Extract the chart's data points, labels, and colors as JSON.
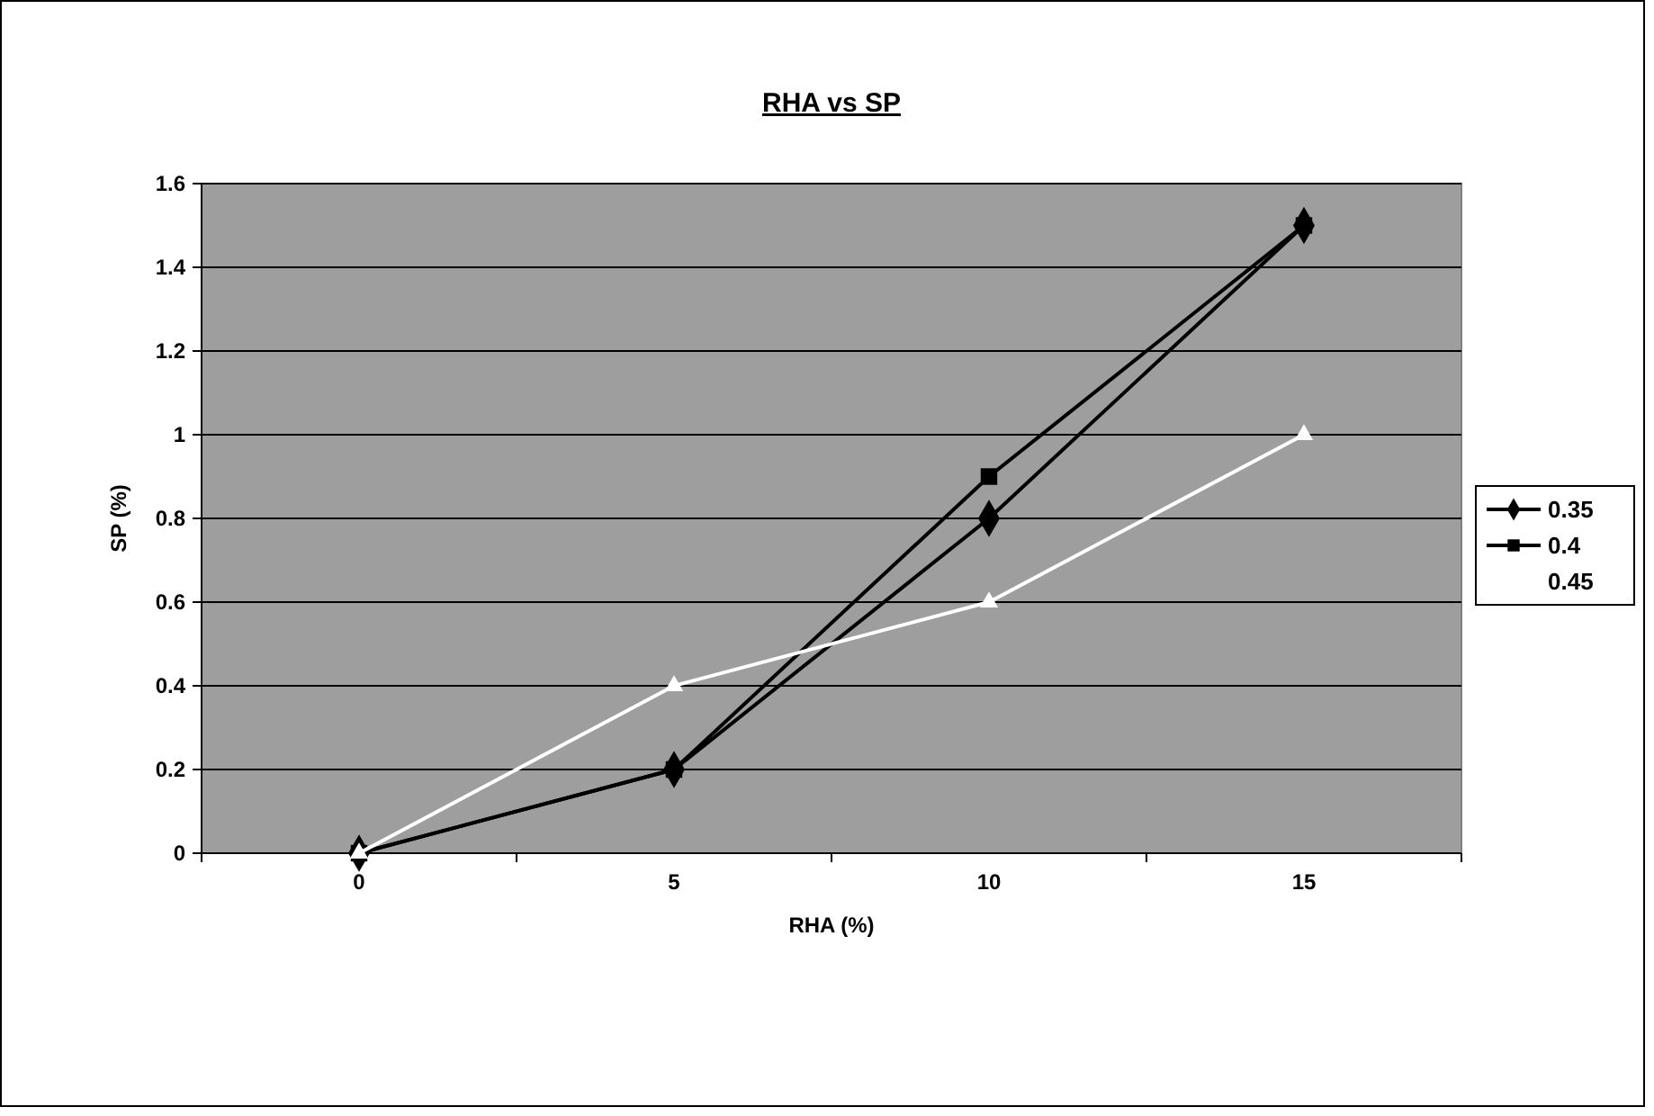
{
  "chart_data": {
    "type": "line",
    "title": "RHA vs SP",
    "xlabel": "RHA (%)",
    "ylabel": "SP (%)",
    "categories": [
      "0",
      "5",
      "10",
      "15"
    ],
    "series": [
      {
        "name": "0.35",
        "color": "#000000",
        "marker": "diamond",
        "values": [
          0,
          0.2,
          0.8,
          1.5
        ]
      },
      {
        "name": "0.4",
        "color": "#000000",
        "marker": "square",
        "values": [
          0,
          0.2,
          0.9,
          1.5
        ]
      },
      {
        "name": "0.45",
        "color": "#ffffff",
        "marker": "triangle",
        "values": [
          0,
          0.4,
          0.6,
          1.0
        ]
      }
    ],
    "ylim": [
      0,
      1.6
    ],
    "yticks": [
      0,
      0.2,
      0.4,
      0.6,
      0.8,
      1,
      1.2,
      1.4,
      1.6
    ],
    "grid": "y",
    "legend": "right",
    "line_style": "solid"
  }
}
